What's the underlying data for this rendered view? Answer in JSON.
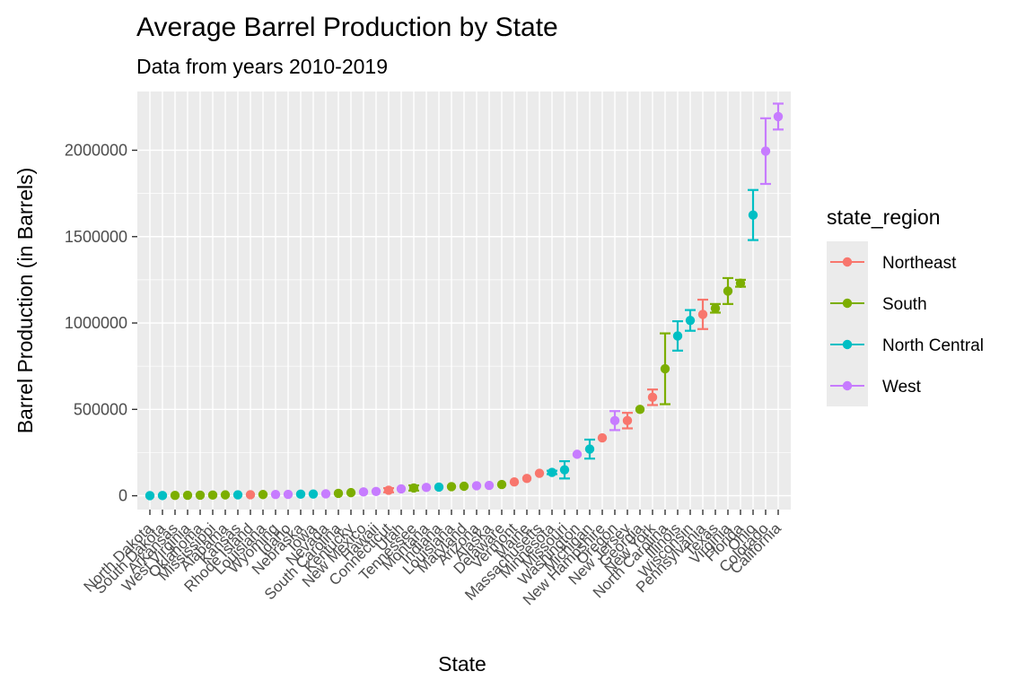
{
  "chart_data": {
    "type": "scatter",
    "title": "Average Barrel Production by State",
    "subtitle": "Data from years 2010-2019",
    "xlabel": "State",
    "ylabel": "Barrel Production (in Barrels)",
    "ylim": [
      -80000,
      2340000
    ],
    "yticks": [
      0,
      500000,
      1000000,
      1500000,
      2000000
    ],
    "ytick_labels": [
      "0",
      "500000",
      "1000000",
      "1500000",
      "2000000"
    ],
    "grid": true,
    "legend": {
      "title": "state_region",
      "position": "right",
      "entries": [
        {
          "name": "Northeast",
          "color": "#F8766D"
        },
        {
          "name": "South",
          "color": "#7CAE00"
        },
        {
          "name": "North Central",
          "color": "#00BFC4"
        },
        {
          "name": "West",
          "color": "#C77CFF"
        }
      ]
    },
    "points": [
      {
        "state": "North Dakota",
        "region": "North Central",
        "y": 800,
        "err": 0
      },
      {
        "state": "South Dakota",
        "region": "North Central",
        "y": 1200,
        "err": 0
      },
      {
        "state": "Arkansas",
        "region": "South",
        "y": 2000,
        "err": 0
      },
      {
        "state": "West Virginia",
        "region": "South",
        "y": 3000,
        "err": 0
      },
      {
        "state": "Oklahoma",
        "region": "South",
        "y": 3500,
        "err": 0
      },
      {
        "state": "Mississippi",
        "region": "South",
        "y": 4000,
        "err": 0
      },
      {
        "state": "Alabama",
        "region": "South",
        "y": 5000,
        "err": 0
      },
      {
        "state": "Kansas",
        "region": "North Central",
        "y": 5500,
        "err": 0
      },
      {
        "state": "Rhode Island",
        "region": "Northeast",
        "y": 6000,
        "err": 0
      },
      {
        "state": "Louisiana",
        "region": "South",
        "y": 7000,
        "err": 0
      },
      {
        "state": "Wyoming",
        "region": "West",
        "y": 7500,
        "err": 0
      },
      {
        "state": "Idaho",
        "region": "West",
        "y": 8000,
        "err": 0
      },
      {
        "state": "Nebraska",
        "region": "North Central",
        "y": 9000,
        "err": 0
      },
      {
        "state": "Iowa",
        "region": "North Central",
        "y": 10000,
        "err": 0
      },
      {
        "state": "Nevada",
        "region": "West",
        "y": 11000,
        "err": 0
      },
      {
        "state": "South Carolina",
        "region": "South",
        "y": 14000,
        "err": 0
      },
      {
        "state": "Kentucky",
        "region": "South",
        "y": 18000,
        "err": 0
      },
      {
        "state": "New Mexico",
        "region": "West",
        "y": 22000,
        "err": 0
      },
      {
        "state": "Hawaii",
        "region": "West",
        "y": 25000,
        "err": 0
      },
      {
        "state": "Connecticut",
        "region": "Northeast",
        "y": 32000,
        "err": 12000
      },
      {
        "state": "Utah",
        "region": "West",
        "y": 40000,
        "err": 0
      },
      {
        "state": "Tennessee",
        "region": "South",
        "y": 45000,
        "err": 15000
      },
      {
        "state": "Montana",
        "region": "West",
        "y": 48000,
        "err": 0
      },
      {
        "state": "Indiana",
        "region": "North Central",
        "y": 50000,
        "err": 0
      },
      {
        "state": "Louisiana",
        "region": "South",
        "y": 53000,
        "err": 0
      },
      {
        "state": "Maryland",
        "region": "South",
        "y": 55000,
        "err": 0
      },
      {
        "state": "Arizona",
        "region": "West",
        "y": 58000,
        "err": 0
      },
      {
        "state": "Alaska",
        "region": "West",
        "y": 60000,
        "err": 0
      },
      {
        "state": "Delaware",
        "region": "South",
        "y": 65000,
        "err": 0
      },
      {
        "state": "Vermont",
        "region": "Northeast",
        "y": 80000,
        "err": 0
      },
      {
        "state": "Maine",
        "region": "Northeast",
        "y": 100000,
        "err": 0
      },
      {
        "state": "Massachusetts",
        "region": "Northeast",
        "y": 130000,
        "err": 0
      },
      {
        "state": "Minnesota",
        "region": "North Central",
        "y": 135000,
        "err": 10000
      },
      {
        "state": "Missouri",
        "region": "North Central",
        "y": 150000,
        "err": 50000
      },
      {
        "state": "Washington",
        "region": "West",
        "y": 240000,
        "err": 0
      },
      {
        "state": "Michigan",
        "region": "North Central",
        "y": 270000,
        "err": 55000
      },
      {
        "state": "New Hampshire",
        "region": "Northeast",
        "y": 335000,
        "err": 0
      },
      {
        "state": "Oregon",
        "region": "West",
        "y": 435000,
        "err": 55000
      },
      {
        "state": "New Jersey",
        "region": "Northeast",
        "y": 435000,
        "err": 45000
      },
      {
        "state": "Georgia",
        "region": "South",
        "y": 500000,
        "err": 0
      },
      {
        "state": "New York",
        "region": "Northeast",
        "y": 570000,
        "err": 45000
      },
      {
        "state": "North Carolina",
        "region": "South",
        "y": 735000,
        "err": 205000
      },
      {
        "state": "Illinois",
        "region": "North Central",
        "y": 925000,
        "err": 85000
      },
      {
        "state": "Wisconsin",
        "region": "North Central",
        "y": 1015000,
        "err": 60000
      },
      {
        "state": "Pennsylvania",
        "region": "Northeast",
        "y": 1050000,
        "err": 85000
      },
      {
        "state": "Texas",
        "region": "South",
        "y": 1085000,
        "err": 25000
      },
      {
        "state": "Virginia",
        "region": "South",
        "y": 1185000,
        "err": 75000
      },
      {
        "state": "Florida",
        "region": "South",
        "y": 1230000,
        "err": 20000
      },
      {
        "state": "Ohio",
        "region": "North Central",
        "y": 1625000,
        "err": 145000
      },
      {
        "state": "Colorado",
        "region": "West",
        "y": 1995000,
        "err": 190000
      },
      {
        "state": "California",
        "region": "West",
        "y": 2195000,
        "err": 75000
      }
    ]
  }
}
